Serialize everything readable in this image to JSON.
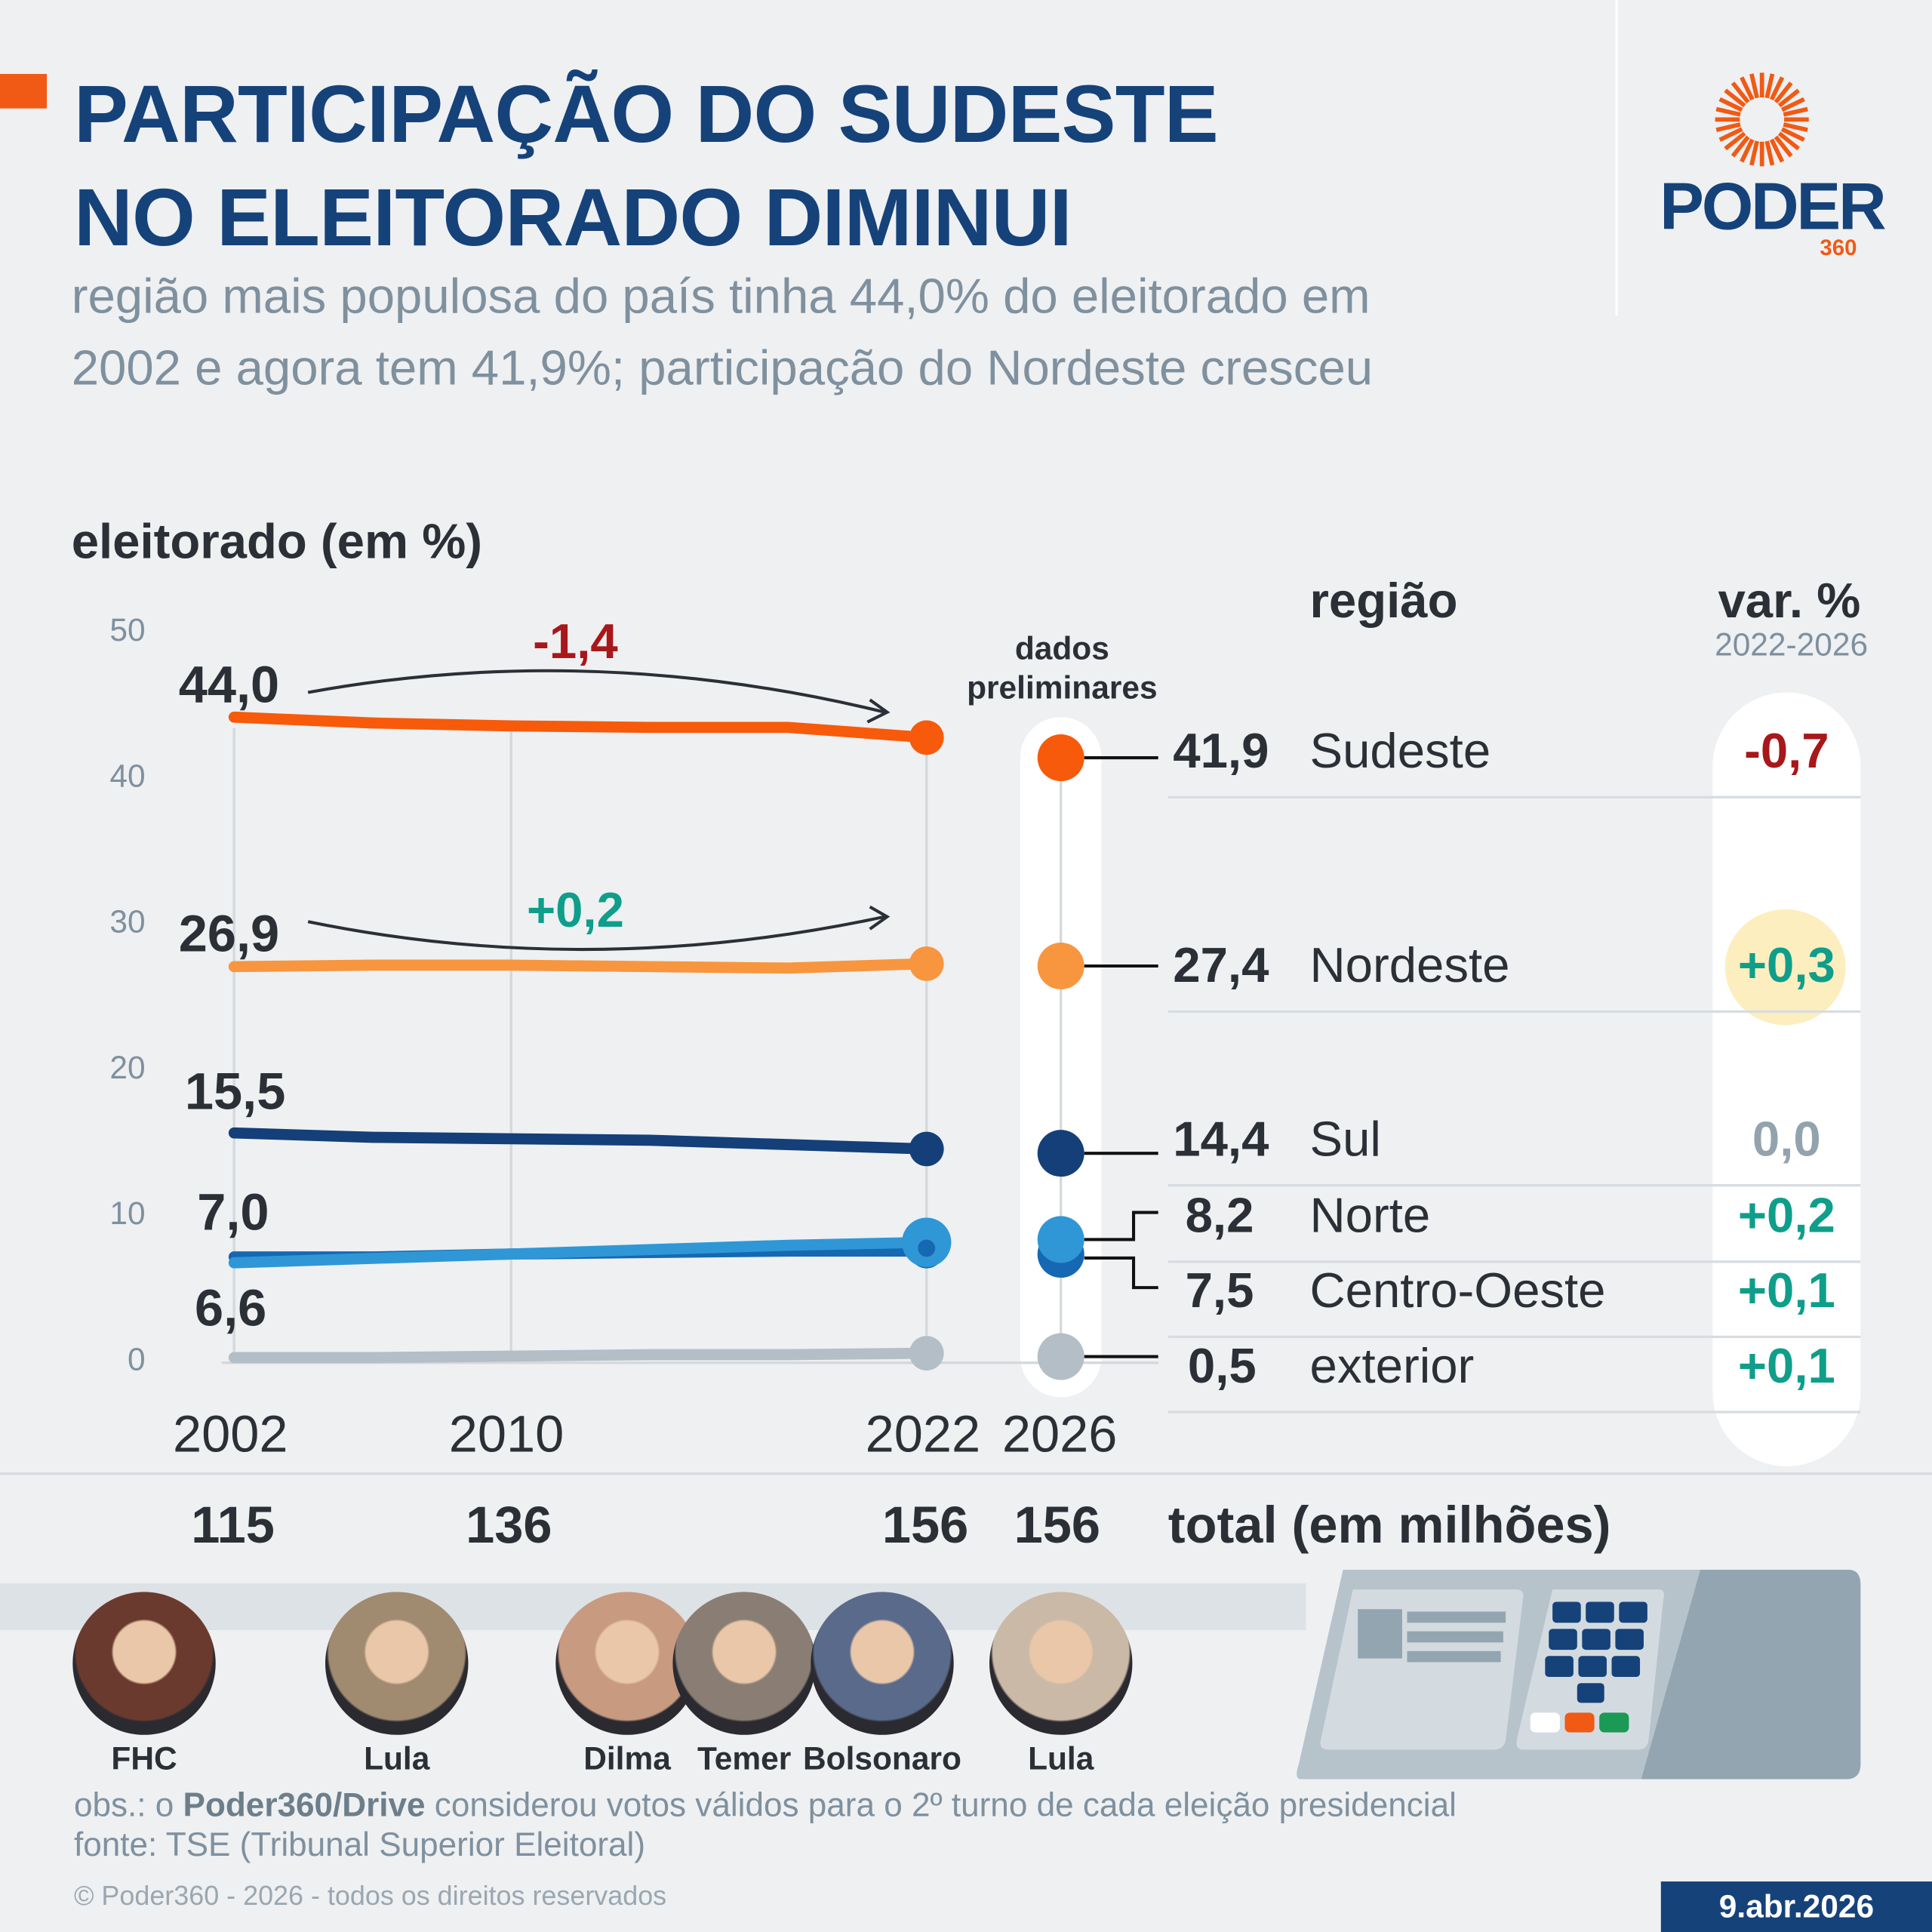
{
  "header": {
    "title_line1": "PARTICIPAÇÃO DO SUDESTE",
    "title_line2": "NO ELEITORADO DIMINUI",
    "subtitle_line1": "região mais populosa do país tinha 44,0% do eleitorado em",
    "subtitle_line2": "2002 e agora tem 41,9%; participação do Nordeste cresceu"
  },
  "logo": {
    "word": "PODER",
    "number": "360",
    "color": "#f05a14"
  },
  "colors": {
    "accent": "#f05a14",
    "title": "#16427a",
    "negative": "#a8171a",
    "positive": "#0f9e8a",
    "neutral": "#93a3ae",
    "highlight": "#fdeec0"
  },
  "chart_data": {
    "type": "line",
    "ylabel": "eleitorado (em %)",
    "ylim": [
      0,
      50
    ],
    "yticks": [
      "50",
      "40",
      "30",
      "20",
      "10",
      "0"
    ],
    "x": [
      2002,
      2006,
      2010,
      2014,
      2018,
      2022
    ],
    "xtick_labels": [
      "2002",
      "2010",
      "2022",
      "2026"
    ],
    "series": [
      {
        "name": "Sudeste",
        "color": "#f75a0a",
        "values": [
          44.0,
          43.6,
          43.4,
          43.3,
          43.3,
          42.6
        ]
      },
      {
        "name": "Nordeste",
        "color": "#f7963f",
        "values": [
          26.9,
          27.0,
          27.0,
          26.9,
          26.8,
          27.1
        ]
      },
      {
        "name": "Sul",
        "color": "#143f78",
        "values": [
          15.5,
          15.2,
          15.1,
          15.0,
          14.7,
          14.4
        ]
      },
      {
        "name": "Centro-Oeste",
        "color": "#1668b3",
        "values": [
          7.0,
          7.0,
          7.2,
          7.3,
          7.4,
          7.4
        ]
      },
      {
        "name": "Norte",
        "color": "#2f97d6",
        "values": [
          6.6,
          6.9,
          7.2,
          7.5,
          7.8,
          8.0
        ]
      },
      {
        "name": "exterior",
        "color": "#b3bec6",
        "values": [
          0.1,
          0.1,
          0.2,
          0.3,
          0.3,
          0.4
        ]
      }
    ],
    "start_labels": [
      "44,0",
      "26,9",
      "15,5",
      "7,0",
      "6,6"
    ],
    "annotations": [
      {
        "text": "-1,4",
        "color": "#a8171a"
      },
      {
        "text": "+0,2",
        "color": "#0f9e8a"
      }
    ],
    "preliminary_label_1": "dados",
    "preliminary_label_2": "preliminares",
    "values_2026": [
      41.9,
      27.4,
      14.4,
      8.2,
      7.5,
      0.5
    ]
  },
  "table": {
    "header_region": "região",
    "header_var": "var. %",
    "header_var_period": "2022-2026",
    "rows": [
      {
        "value": "41,9",
        "region": "Sudeste",
        "var": "-0,7",
        "color": "#f75a0a",
        "var_color": "#a8171a"
      },
      {
        "value": "27,4",
        "region": "Nordeste",
        "var": "+0,3",
        "color": "#f7963f",
        "var_color": "#0f9e8a"
      },
      {
        "value": "14,4",
        "region": "Sul",
        "var": "0,0",
        "color": "#143f78",
        "var_color": "#93a3ae"
      },
      {
        "value": "8,2",
        "region": "Norte",
        "var": "+0,2",
        "color": "#2f97d6",
        "var_color": "#0f9e8a"
      },
      {
        "value": "7,5",
        "region": "Centro-Oeste",
        "var": "+0,1",
        "color": "#1668b3",
        "var_color": "#0f9e8a"
      },
      {
        "value": "0,5",
        "region": "exterior",
        "var": "+0,1",
        "color": "#b3bec6",
        "var_color": "#0f9e8a"
      }
    ]
  },
  "totals": {
    "values": [
      "115",
      "136",
      "156",
      "156"
    ],
    "label": "total (em milhões)"
  },
  "presidents": [
    "FHC",
    "Lula",
    "Dilma",
    "Temer",
    "Bolsonaro",
    "Lula"
  ],
  "footer": {
    "obs_prefix": "obs.: o ",
    "obs_bold": "Poder360/Drive",
    "obs_suffix": " considerou votos válidos para o 2º turno de cada eleição presidencial",
    "source": "fonte: TSE (Tribunal Superior Eleitoral)",
    "copyright": "© Poder360 - 2026 - todos os direitos reservados",
    "date": "9.abr.2026"
  }
}
